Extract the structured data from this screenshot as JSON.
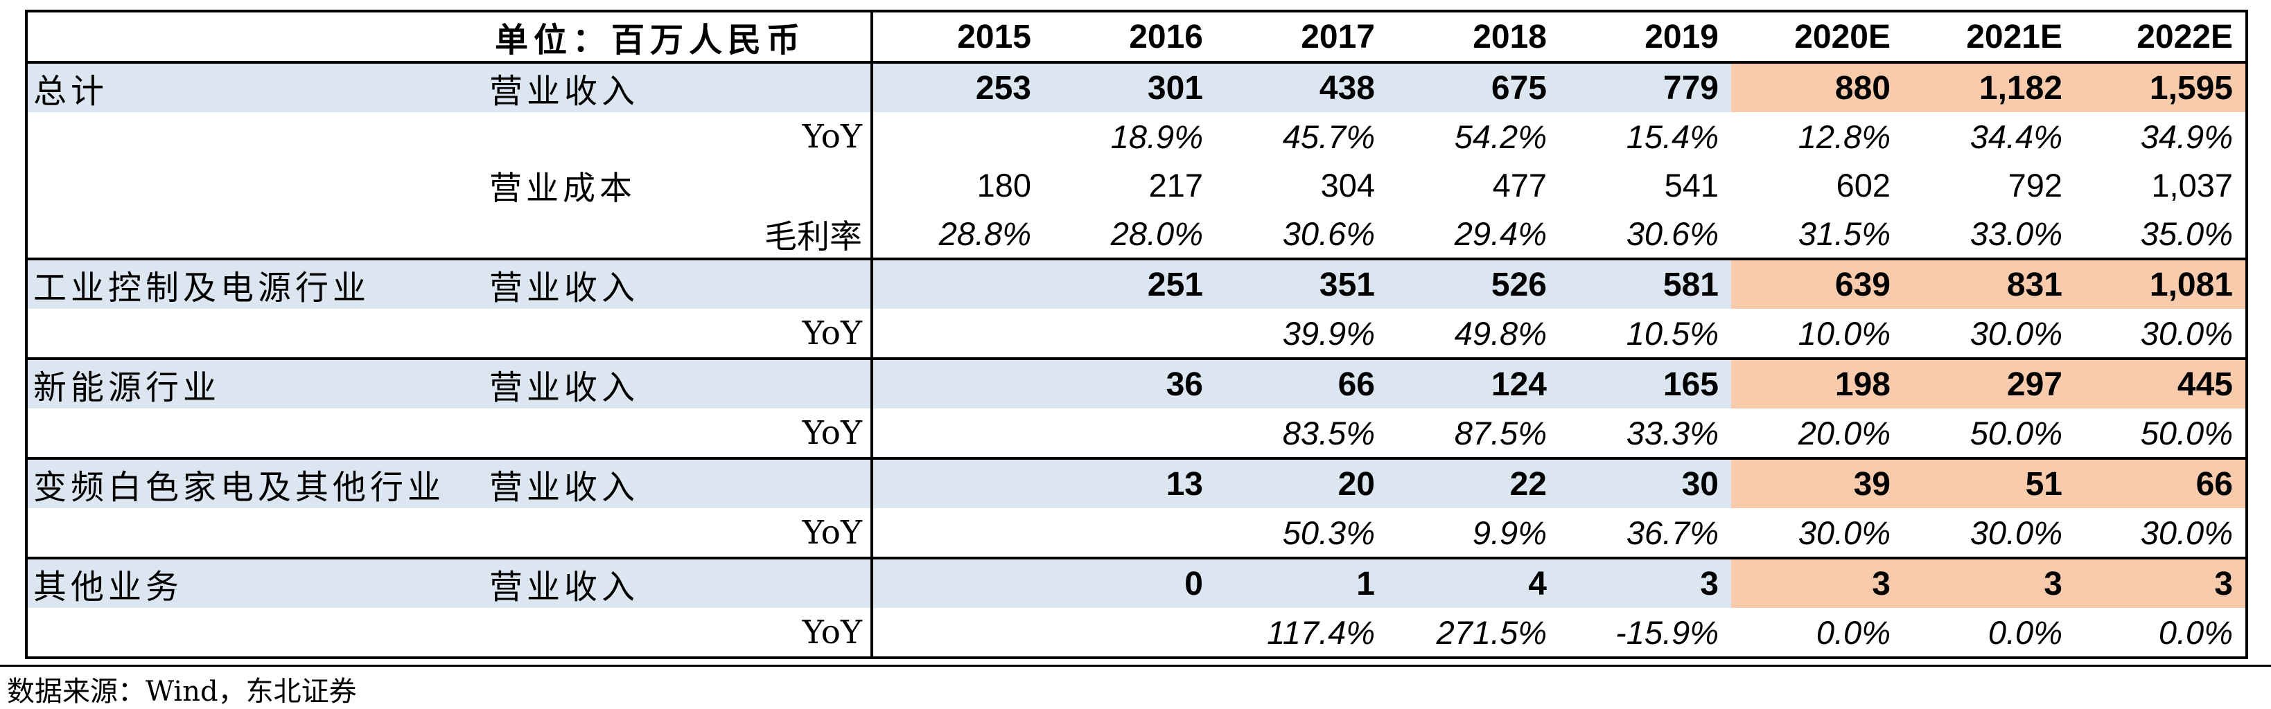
{
  "table": {
    "unit_label": "单位：百万人民币",
    "years": [
      "2015",
      "2016",
      "2017",
      "2018",
      "2019",
      "2020E",
      "2021E",
      "2022E"
    ],
    "rows": [
      {
        "type": "rev",
        "segment": "总计",
        "metric": "营业收入",
        "values": [
          "253",
          "301",
          "438",
          "675",
          "779",
          "880",
          "1,182",
          "1,595"
        ]
      },
      {
        "type": "yoy",
        "segment": "",
        "metric": "YoY",
        "values": [
          "",
          "18.9%",
          "45.7%",
          "54.2%",
          "15.4%",
          "12.8%",
          "34.4%",
          "34.9%"
        ]
      },
      {
        "type": "cost",
        "segment": "",
        "metric": "营业成本",
        "values": [
          "180",
          "217",
          "304",
          "477",
          "541",
          "602",
          "792",
          "1,037"
        ]
      },
      {
        "type": "gm",
        "segment": "",
        "metric": "毛利率",
        "values": [
          "28.8%",
          "28.0%",
          "30.6%",
          "29.4%",
          "30.6%",
          "31.5%",
          "33.0%",
          "35.0%"
        ]
      },
      {
        "type": "rev",
        "segment": "工业控制及电源行业",
        "metric": "营业收入",
        "values": [
          "",
          "251",
          "351",
          "526",
          "581",
          "639",
          "831",
          "1,081"
        ]
      },
      {
        "type": "yoy",
        "segment": "",
        "metric": "YoY",
        "values": [
          "",
          "",
          "39.9%",
          "49.8%",
          "10.5%",
          "10.0%",
          "30.0%",
          "30.0%"
        ]
      },
      {
        "type": "rev",
        "segment": "新能源行业",
        "metric": "营业收入",
        "values": [
          "",
          "36",
          "66",
          "124",
          "165",
          "198",
          "297",
          "445"
        ]
      },
      {
        "type": "yoy",
        "segment": "",
        "metric": "YoY",
        "values": [
          "",
          "",
          "83.5%",
          "87.5%",
          "33.3%",
          "20.0%",
          "50.0%",
          "50.0%"
        ]
      },
      {
        "type": "rev",
        "segment": "变频白色家电及其他行业",
        "metric": "营业收入",
        "values": [
          "",
          "13",
          "20",
          "22",
          "30",
          "39",
          "51",
          "66"
        ]
      },
      {
        "type": "yoy",
        "segment": "",
        "metric": "YoY",
        "values": [
          "",
          "",
          "50.3%",
          "9.9%",
          "36.7%",
          "30.0%",
          "30.0%",
          "30.0%"
        ]
      },
      {
        "type": "rev",
        "segment": "其他业务",
        "metric": "营业收入",
        "values": [
          "",
          "0",
          "1",
          "4",
          "3",
          "3",
          "3",
          "3"
        ]
      },
      {
        "type": "yoy",
        "segment": "",
        "metric": "YoY",
        "values": [
          "",
          "",
          "117.4%",
          "271.5%",
          "-15.9%",
          "0.0%",
          "0.0%",
          "0.0%"
        ]
      }
    ]
  },
  "footer": {
    "source": "数据来源：Wind，东北证券"
  },
  "colors": {
    "revenue_row_bg": "#dce6f1",
    "forecast_cell_bg": "#f8cbad",
    "border": "#000000"
  }
}
